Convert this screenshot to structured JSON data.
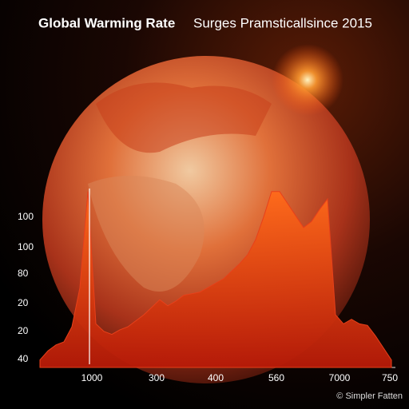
{
  "chart_data": {
    "type": "area",
    "title": "Global Warming Rate",
    "subtitle": "Surges Pramsticallsince 2015",
    "x_labels": [
      "1000",
      "300",
      "400",
      "560",
      "7000",
      "750"
    ],
    "y_labels": [
      "100",
      "100",
      "80",
      "20",
      "20",
      "40"
    ],
    "ylim": [
      0,
      120
    ],
    "values": [
      5,
      11,
      15,
      17,
      27,
      53,
      117,
      29,
      24,
      22,
      25,
      27,
      31,
      35,
      40,
      45,
      41,
      44,
      48,
      49,
      50,
      53,
      56,
      59,
      64,
      69,
      75,
      85,
      100,
      117,
      117,
      109,
      101,
      93,
      97,
      105,
      112,
      35,
      29,
      32,
      29,
      28,
      21,
      13,
      5
    ],
    "color": "#e8401a",
    "credit": "© Simpler Fatten"
  }
}
